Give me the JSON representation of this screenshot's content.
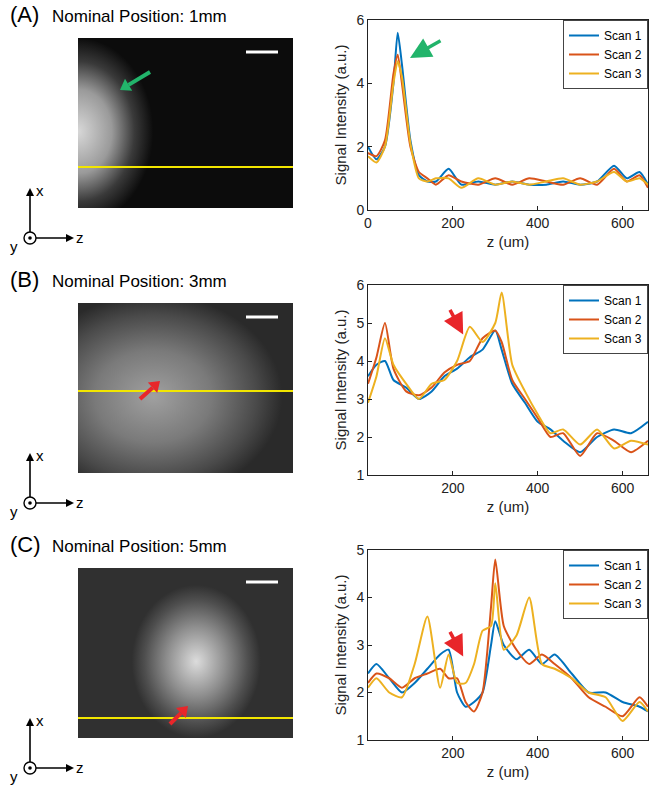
{
  "chart_data": [
    {
      "type": "line",
      "panel": "(A)",
      "title": "Nominal Position: 1mm",
      "image_axes": [
        "x",
        "y",
        "z"
      ],
      "xlabel": "z (um)",
      "ylabel": "Signal Intensity (a.u.)",
      "legend": "top-right",
      "xlim": [
        0,
        660
      ],
      "ylim": [
        0,
        6
      ],
      "xticks": [
        0,
        200,
        400,
        600
      ],
      "yticks": [
        0,
        2,
        4,
        6
      ],
      "x": [
        0,
        20,
        40,
        60,
        70,
        80,
        100,
        120,
        140,
        160,
        190,
        220,
        260,
        300,
        340,
        380,
        420,
        460,
        500,
        540,
        580,
        610,
        640,
        660
      ],
      "series": [
        {
          "name": "Scan 1",
          "color": "#0072BD",
          "values": [
            2.0,
            1.6,
            2.0,
            4.0,
            5.6,
            4.6,
            2.2,
            1.1,
            0.9,
            0.9,
            1.3,
            0.8,
            0.9,
            0.8,
            0.9,
            0.8,
            0.8,
            0.9,
            0.8,
            0.9,
            1.4,
            1.0,
            1.2,
            0.8
          ]
        },
        {
          "name": "Scan 2",
          "color": "#D95319",
          "values": [
            1.8,
            1.7,
            2.2,
            4.3,
            4.9,
            4.0,
            2.0,
            1.2,
            1.0,
            0.8,
            1.1,
            0.9,
            0.8,
            1.0,
            0.8,
            1.0,
            0.9,
            0.8,
            1.0,
            0.8,
            1.3,
            0.9,
            1.1,
            0.7
          ]
        },
        {
          "name": "Scan 3",
          "color": "#EDB120",
          "values": [
            1.7,
            1.5,
            2.0,
            4.0,
            4.7,
            4.2,
            2.1,
            1.0,
            0.9,
            1.0,
            1.0,
            0.7,
            1.0,
            0.8,
            0.9,
            0.8,
            0.9,
            1.0,
            0.8,
            0.9,
            1.2,
            0.9,
            1.0,
            0.8
          ]
        }
      ]
    },
    {
      "type": "line",
      "panel": "(B)",
      "title": "Nominal Position: 3mm",
      "image_axes": [
        "x",
        "y",
        "z"
      ],
      "xlabel": "z (um)",
      "ylabel": "Signal Intensity (a.u.)",
      "legend": "top-right",
      "xlim": [
        0,
        660
      ],
      "ylim": [
        1,
        6
      ],
      "xticks": [
        200,
        400,
        600
      ],
      "yticks": [
        1,
        2,
        3,
        4,
        5,
        6
      ],
      "x": [
        0,
        20,
        40,
        60,
        90,
        120,
        150,
        180,
        210,
        240,
        270,
        300,
        315,
        340,
        370,
        400,
        430,
        460,
        500,
        540,
        580,
        620,
        660
      ],
      "series": [
        {
          "name": "Scan 1",
          "color": "#0072BD",
          "values": [
            3.6,
            3.9,
            4.0,
            3.5,
            3.3,
            3.0,
            3.2,
            3.6,
            3.8,
            4.1,
            4.3,
            4.8,
            4.3,
            3.4,
            2.9,
            2.4,
            2.2,
            1.9,
            1.6,
            2.0,
            2.2,
            2.1,
            2.4
          ]
        },
        {
          "name": "Scan 2",
          "color": "#D95319",
          "values": [
            3.4,
            4.1,
            5.0,
            3.8,
            3.2,
            3.1,
            3.3,
            3.7,
            3.9,
            4.0,
            4.6,
            4.8,
            4.5,
            3.5,
            3.0,
            2.5,
            2.0,
            2.1,
            1.5,
            2.1,
            1.9,
            1.6,
            1.9
          ]
        },
        {
          "name": "Scan 3",
          "color": "#EDB120",
          "values": [
            2.9,
            3.6,
            4.6,
            3.9,
            3.4,
            3.0,
            3.4,
            3.5,
            4.0,
            4.9,
            4.5,
            5.0,
            5.8,
            3.9,
            3.2,
            2.6,
            2.1,
            2.2,
            1.8,
            2.2,
            1.7,
            1.9,
            1.8
          ]
        }
      ]
    },
    {
      "type": "line",
      "panel": "(C)",
      "title": "Nominal Position: 5mm",
      "image_axes": [
        "x",
        "y",
        "z"
      ],
      "xlabel": "z (um)",
      "ylabel": "Signal Intensity (a.u.)",
      "legend": "top-right",
      "xlim": [
        0,
        660
      ],
      "ylim": [
        1,
        5
      ],
      "xticks": [
        200,
        400,
        600
      ],
      "yticks": [
        1,
        2,
        3,
        4,
        5
      ],
      "x": [
        0,
        20,
        50,
        80,
        110,
        140,
        170,
        190,
        210,
        230,
        250,
        270,
        290,
        300,
        320,
        350,
        380,
        410,
        440,
        480,
        520,
        560,
        600,
        640,
        660
      ],
      "series": [
        {
          "name": "Scan 1",
          "color": "#0072BD",
          "values": [
            2.4,
            2.6,
            2.3,
            2.0,
            2.2,
            2.5,
            2.8,
            2.9,
            2.0,
            1.7,
            1.8,
            2.0,
            3.0,
            3.5,
            3.0,
            2.7,
            2.9,
            2.6,
            2.8,
            2.4,
            2.0,
            2.0,
            1.8,
            1.7,
            1.6
          ]
        },
        {
          "name": "Scan 2",
          "color": "#D95319",
          "values": [
            2.2,
            2.4,
            2.3,
            2.1,
            2.3,
            2.4,
            2.5,
            2.3,
            2.3,
            1.8,
            1.6,
            2.0,
            3.8,
            4.8,
            3.4,
            2.9,
            2.6,
            2.8,
            2.6,
            2.3,
            1.9,
            1.7,
            1.5,
            1.9,
            1.7
          ]
        },
        {
          "name": "Scan 3",
          "color": "#EDB120",
          "values": [
            2.1,
            2.3,
            2.0,
            1.9,
            2.6,
            3.6,
            2.1,
            2.8,
            2.2,
            2.2,
            2.6,
            3.3,
            3.4,
            4.3,
            2.9,
            3.2,
            4.0,
            2.6,
            2.5,
            2.3,
            2.0,
            1.9,
            1.4,
            1.8,
            1.6
          ]
        }
      ]
    }
  ]
}
